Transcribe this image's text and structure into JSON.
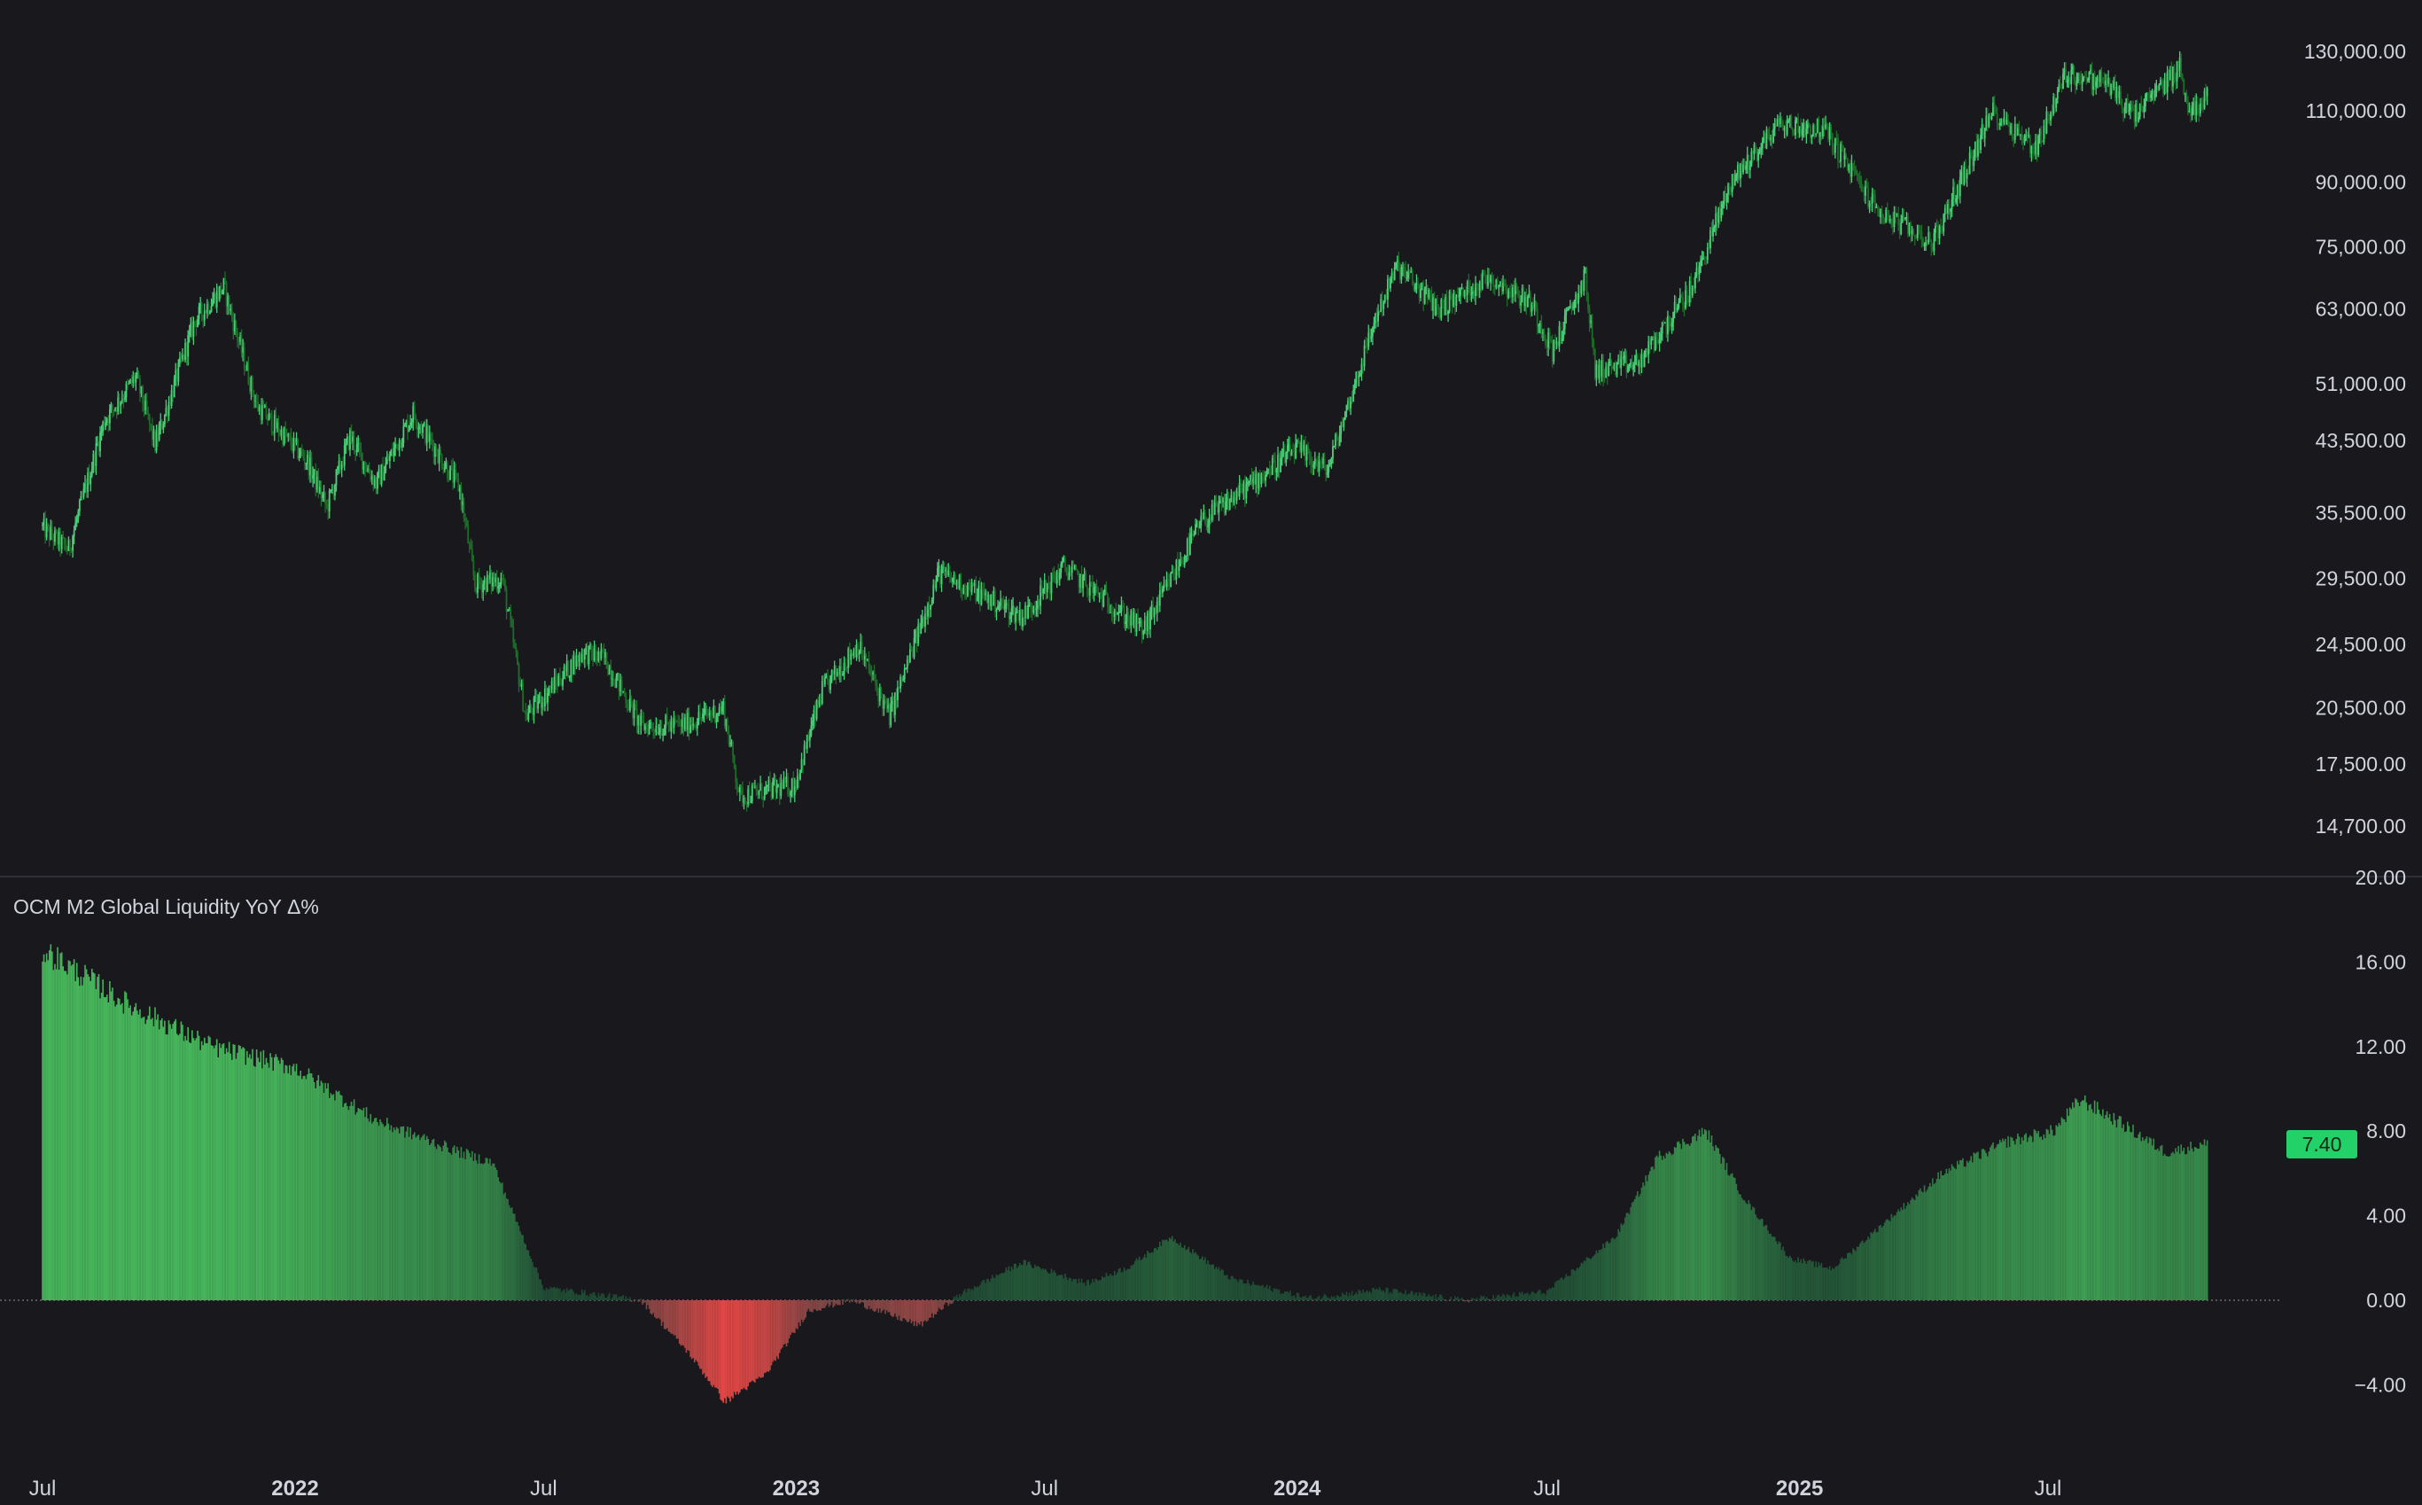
{
  "colors": {
    "background": "#18181d",
    "up": "#4ccf7a",
    "down": "#1f6b2a",
    "positive_bar": "#3fa860",
    "negative_bar": "#d9534f",
    "divider": "#2e2f36",
    "badge": "#22d168"
  },
  "chart_data": [
    {
      "type": "candlestick",
      "title": "",
      "y_scale": "log",
      "ylim": [
        13000,
        135000
      ],
      "y_ticks": [
        "130,000.00",
        "110,000.00",
        "90,000.00",
        "75,000.00",
        "63,000.00",
        "51,000.00",
        "43,500.00",
        "35,500.00",
        "29,500.00",
        "24,500.00",
        "20,500.00",
        "17,500.00",
        "14,700.00"
      ],
      "y_tick_values": [
        130000,
        110000,
        90000,
        75000,
        63000,
        51000,
        43500,
        35500,
        29500,
        24500,
        20500,
        17500,
        14700
      ],
      "x": [
        "2021-07-01",
        "2021-07-20",
        "2021-08-15",
        "2021-09-07",
        "2021-09-21",
        "2021-10-20",
        "2021-11-10",
        "2021-12-04",
        "2022-01-10",
        "2022-01-24",
        "2022-02-10",
        "2022-03-01",
        "2022-03-28",
        "2022-05-01",
        "2022-05-12",
        "2022-06-01",
        "2022-06-18",
        "2022-07-30",
        "2022-08-15",
        "2022-09-10",
        "2022-10-10",
        "2022-11-09",
        "2022-11-21",
        "2022-12-31",
        "2023-01-20",
        "2023-02-15",
        "2023-03-10",
        "2023-04-15",
        "2023-06-15",
        "2023-07-15",
        "2023-09-11",
        "2023-10-23",
        "2023-11-15",
        "2023-12-31",
        "2024-01-23",
        "2024-02-28",
        "2024-03-14",
        "2024-04-13",
        "2024-05-20",
        "2024-06-20",
        "2024-07-05",
        "2024-07-29",
        "2024-08-05",
        "2024-09-06",
        "2024-10-15",
        "2024-11-12",
        "2024-12-17",
        "2025-01-20",
        "2025-02-27",
        "2025-04-08",
        "2025-05-22",
        "2025-06-22",
        "2025-07-14",
        "2025-08-14",
        "2025-09-01",
        "2025-10-06",
        "2025-10-10",
        "2025-10-25"
      ],
      "values": [
        34000,
        32000,
        46000,
        52000,
        43000,
        61000,
        67000,
        48000,
        41000,
        36000,
        44000,
        38500,
        47000,
        38000,
        29000,
        29500,
        20000,
        24000,
        23500,
        19500,
        19500,
        20500,
        16000,
        16500,
        21500,
        24500,
        20000,
        30000,
        26500,
        30500,
        25500,
        34500,
        37000,
        42500,
        40000,
        62000,
        71000,
        63000,
        69000,
        64000,
        56000,
        69000,
        53000,
        54000,
        67000,
        90000,
        106000,
        104000,
        83000,
        76000,
        110000,
        99000,
        122000,
        119000,
        108000,
        125000,
        110000,
        114000
      ],
      "xlabel": "",
      "ylabel": ""
    },
    {
      "type": "bar",
      "title": "OCM M2 Global Liquidity YoY Δ%",
      "ylim": [
        -7,
        20
      ],
      "y_ticks": [
        "20.00",
        "16.00",
        "12.00",
        "8.00",
        "4.00",
        "0.00",
        "−4.00"
      ],
      "y_tick_values": [
        20,
        16,
        12,
        8,
        4,
        0,
        -4
      ],
      "x": [
        "2021-07-01",
        "2021-09-01",
        "2021-11-01",
        "2022-01-01",
        "2022-03-01",
        "2022-05-01",
        "2022-05-25",
        "2022-07-01",
        "2022-09-10",
        "2022-10-15",
        "2022-11-10",
        "2022-12-10",
        "2023-01-10",
        "2023-02-10",
        "2023-04-01",
        "2023-05-01",
        "2023-06-15",
        "2023-08-01",
        "2023-09-01",
        "2023-10-01",
        "2023-11-15",
        "2024-01-10",
        "2024-03-01",
        "2024-05-01",
        "2024-07-01",
        "2024-08-20",
        "2024-09-20",
        "2024-10-25",
        "2024-11-20",
        "2024-12-25",
        "2025-01-25",
        "2025-03-01",
        "2025-04-15",
        "2025-06-01",
        "2025-07-05",
        "2025-07-25",
        "2025-08-20",
        "2025-09-25",
        "2025-10-25"
      ],
      "values": [
        16.6,
        14.0,
        12.0,
        11.0,
        8.5,
        7.0,
        6.5,
        0.6,
        0.0,
        -2.5,
        -4.8,
        -3.5,
        -0.5,
        0.0,
        -1.2,
        0.3,
        1.8,
        0.8,
        1.6,
        3.0,
        1.0,
        0.1,
        0.5,
        0.0,
        0.4,
        3.0,
        6.8,
        8.0,
        5.0,
        2.0,
        1.5,
        3.5,
        6.0,
        7.5,
        8.0,
        9.5,
        8.5,
        7.0,
        7.4
      ],
      "last_value": "7.40",
      "xlabel": "",
      "ylabel": ""
    }
  ],
  "x_axis": {
    "labels": [
      {
        "date": "2021-07-01",
        "text": "Jul",
        "bold": false
      },
      {
        "date": "2022-01-01",
        "text": "2022",
        "bold": true
      },
      {
        "date": "2022-07-01",
        "text": "Jul",
        "bold": false
      },
      {
        "date": "2023-01-01",
        "text": "2023",
        "bold": true
      },
      {
        "date": "2023-07-01",
        "text": "Jul",
        "bold": false
      },
      {
        "date": "2024-01-01",
        "text": "2024",
        "bold": true
      },
      {
        "date": "2024-07-01",
        "text": "Jul",
        "bold": false
      },
      {
        "date": "2025-01-01",
        "text": "2025",
        "bold": true
      },
      {
        "date": "2025-07-01",
        "text": "Jul",
        "bold": false
      }
    ]
  }
}
